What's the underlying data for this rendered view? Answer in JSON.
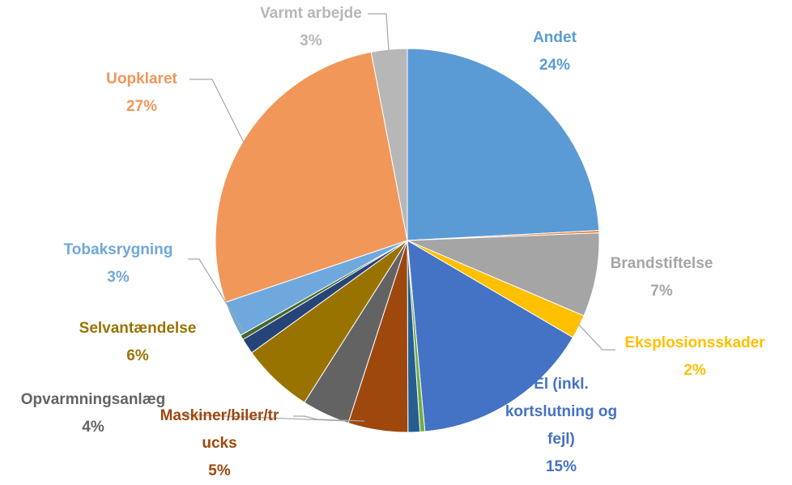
{
  "chart_data": {
    "type": "pie",
    "categories": [
      "Andet",
      null,
      "Brandstiftelse",
      "Eksplosionsskader",
      "El (inkl. kortslutning og fejl)",
      null,
      null,
      "Maskiner/biler/trucks",
      "Opvarmningsanlæg",
      "Selvantændelse",
      null,
      null,
      "Tobaksrygning",
      "Uopklaret",
      "Varmt arbejde"
    ],
    "values": [
      24,
      0.2,
      7,
      2,
      15,
      0.4,
      1,
      5,
      4,
      6,
      1.3,
      0.4,
      3,
      27,
      3
    ],
    "value_labels": [
      "24%",
      null,
      "7%",
      "2%",
      "15%",
      null,
      null,
      "5%",
      "4%",
      "6%",
      null,
      null,
      "3%",
      "27%",
      "3%"
    ],
    "colors": [
      "#5b9bd5",
      "#ed7d31",
      "#a5a5a5",
      "#ffc000",
      "#4472c4",
      "#70ad47",
      "#255e91",
      "#9e480e",
      "#636363",
      "#997300",
      "#264478",
      "#43682b",
      "#6fa8dc",
      "#f1975a",
      "#b7b7b7"
    ]
  }
}
